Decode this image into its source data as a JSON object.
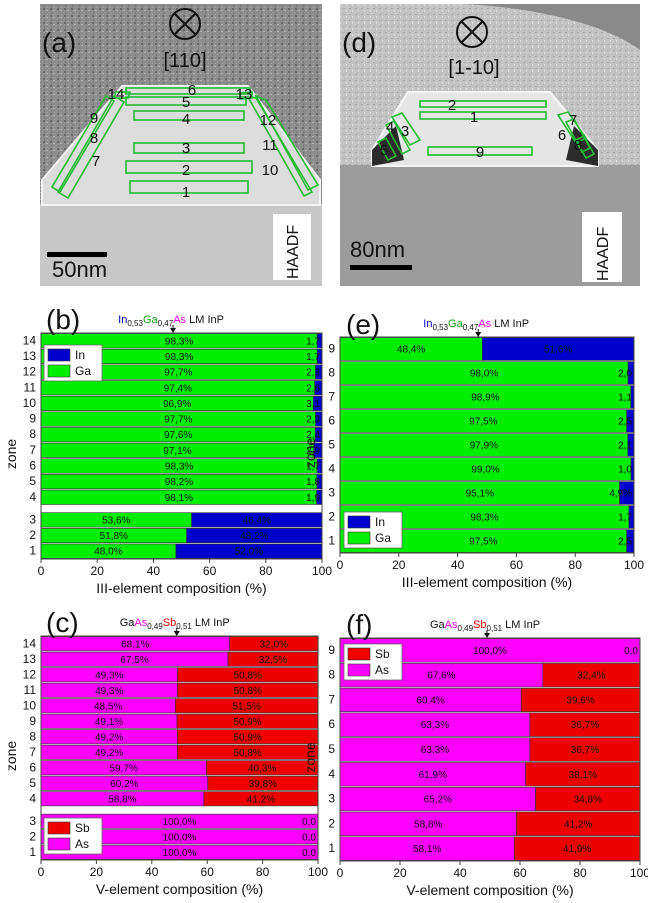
{
  "colors": {
    "in": "#0000cc",
    "ga": "#00ee00",
    "sb": "#ee0000",
    "as": "#ff00ff",
    "frame": "#444444",
    "zone_outline": "#22bb33"
  },
  "tem_images": [
    {
      "panel": "(a)",
      "direction": "[110]",
      "scalebar": "50nm",
      "detector": "HAADF",
      "zone_labels": [
        "1",
        "2",
        "3",
        "4",
        "5",
        "6",
        "7",
        "8",
        "9",
        "10",
        "11",
        "12",
        "13",
        "14"
      ]
    },
    {
      "panel": "(d)",
      "direction": "[1-10]",
      "scalebar": "80nm",
      "detector": "HAADF",
      "zone_labels": [
        "1",
        "2",
        "3",
        "4",
        "5",
        "6",
        "7",
        "8",
        "9"
      ]
    }
  ],
  "chart_data": [
    {
      "type": "bar",
      "orientation": "horizontal",
      "stacked": true,
      "panel": "(b)",
      "annotation": {
        "parts": [
          [
            "In",
            "in"
          ],
          [
            "0,53",
            "sub"
          ],
          [
            "Ga",
            "ga"
          ],
          [
            "0,47",
            "sub"
          ],
          [
            "As",
            "as"
          ],
          [
            " LM InP",
            "txt"
          ]
        ],
        "x": 47
      },
      "xlabel": "III-element composition (%)",
      "ylabel": "zone",
      "xlim": [
        0,
        100
      ],
      "xticks": [
        "0",
        "20",
        "40",
        "60",
        "80",
        "100"
      ],
      "categories": [
        "1",
        "2",
        "3",
        "4",
        "5",
        "6",
        "7",
        "8",
        "9",
        "10",
        "11",
        "12",
        "13",
        "14"
      ],
      "series": [
        {
          "name": "Ga",
          "color": "#00ee00",
          "values": [
            48.0,
            51.8,
            53.6,
            98.1,
            98.2,
            98.3,
            97.1,
            97.6,
            97.7,
            96.9,
            97.4,
            97.7,
            98.3,
            98.3
          ],
          "labels": [
            "48,0%",
            "51,8%",
            "53,6%",
            "98,1%",
            "98,2%",
            "98,3%",
            "97,1%",
            "97,6%",
            "97,7%",
            "96,9%",
            "97,4%",
            "97,7%",
            "98,3%",
            "98,3%"
          ]
        },
        {
          "name": "In",
          "color": "#0000cc",
          "values": [
            52.0,
            48.2,
            46.4,
            1.9,
            1.8,
            1.7,
            2.9,
            2.4,
            2.3,
            3.1,
            2.6,
            2.3,
            1.7,
            1.7
          ],
          "labels": [
            "52,0%",
            "48,2%",
            "46,4%",
            "1,9",
            "1,8",
            "1,7",
            "2,9",
            "2,4",
            "2,3",
            "3,1",
            "2,6",
            "2,3",
            "1,7",
            "1,7"
          ]
        }
      ],
      "legend": "top-left"
    },
    {
      "type": "bar",
      "orientation": "horizontal",
      "stacked": true,
      "panel": "(c)",
      "annotation": {
        "parts": [
          [
            "Ga",
            "txt"
          ],
          [
            "As",
            "as"
          ],
          [
            "0,49",
            "sub"
          ],
          [
            "Sb",
            "sb"
          ],
          [
            "0,51",
            "sub"
          ],
          [
            " LM InP",
            "txt"
          ]
        ],
        "x": 49
      },
      "xlabel": "V-element composition (%)",
      "ylabel": "zone",
      "xlim": [
        0,
        100
      ],
      "xticks": [
        "0",
        "20",
        "40",
        "60",
        "80",
        "100"
      ],
      "categories": [
        "1",
        "2",
        "3",
        "4",
        "5",
        "6",
        "7",
        "8",
        "9",
        "10",
        "11",
        "12",
        "13",
        "14"
      ],
      "series": [
        {
          "name": "As",
          "color": "#ff00ff",
          "values": [
            100.0,
            100.0,
            100.0,
            58.8,
            60.2,
            59.7,
            49.2,
            49.2,
            49.1,
            48.5,
            49.3,
            49.3,
            67.5,
            68.1
          ],
          "labels": [
            "100,0%",
            "100,0%",
            "100,0%",
            "58,8%",
            "60,2%",
            "59,7%",
            "49,2%",
            "49,2%",
            "49,1%",
            "48,5%",
            "49,3%",
            "49,3%",
            "67,5%",
            "68,1%"
          ]
        },
        {
          "name": "Sb",
          "color": "#ee0000",
          "values": [
            0.0,
            0.0,
            0.0,
            41.2,
            39.8,
            40.3,
            50.8,
            50.9,
            50.9,
            51.5,
            50.8,
            50.8,
            32.5,
            32.0
          ],
          "labels": [
            "0,0",
            "0,0",
            "0,0",
            "41,2%",
            "39,8%",
            "40,3%",
            "50,8%",
            "50,9%",
            "50,9%",
            "51,5%",
            "50,8%",
            "50,8%",
            "32,5%",
            "32,0%"
          ]
        }
      ],
      "legend": "bottom-left"
    },
    {
      "type": "bar",
      "orientation": "horizontal",
      "stacked": true,
      "panel": "(e)",
      "annotation": {
        "parts": [
          [
            "In",
            "in"
          ],
          [
            "0,53",
            "sub"
          ],
          [
            "Ga",
            "ga"
          ],
          [
            "0,47",
            "sub"
          ],
          [
            "As",
            "as"
          ],
          [
            " LM InP",
            "txt"
          ]
        ],
        "x": 47
      },
      "xlabel": "III-element composition (%)",
      "ylabel": "zone",
      "xlim": [
        0,
        100
      ],
      "xticks": [
        "0",
        "20",
        "40",
        "60",
        "80",
        "100"
      ],
      "categories": [
        "1",
        "2",
        "3",
        "4",
        "5",
        "6",
        "7",
        "8",
        "9"
      ],
      "series": [
        {
          "name": "Ga",
          "color": "#00ee00",
          "values": [
            97.5,
            98.3,
            95.1,
            99.0,
            97.9,
            97.5,
            98.9,
            98.0,
            48.4
          ],
          "labels": [
            "97,5%",
            "98,3%",
            "95,1%",
            "99,0%",
            "97,9%",
            "97,5%",
            "98,9%",
            "98,0%",
            "48,4%"
          ]
        },
        {
          "name": "In",
          "color": "#0000cc",
          "values": [
            2.5,
            1.7,
            4.9,
            1.0,
            2.1,
            2.5,
            1.1,
            2.0,
            51.6
          ],
          "labels": [
            "2,5",
            "1,7",
            "4,9%",
            "1,0",
            "2,1",
            "2,5",
            "1,1",
            "2,0",
            "51,6%"
          ]
        }
      ],
      "legend": "bottom-left"
    },
    {
      "type": "bar",
      "orientation": "horizontal",
      "stacked": true,
      "panel": "(f)",
      "annotation": {
        "parts": [
          [
            "Ga",
            "txt"
          ],
          [
            "As",
            "as"
          ],
          [
            "0,49",
            "sub"
          ],
          [
            "Sb",
            "sb"
          ],
          [
            "0,51",
            "sub"
          ],
          [
            " LM InP",
            "txt"
          ]
        ],
        "x": 49
      },
      "xlabel": "V-element composition (%)",
      "ylabel": "zone",
      "xlim": [
        0,
        100
      ],
      "xticks": [
        "0",
        "20",
        "40",
        "60",
        "80",
        "100"
      ],
      "categories": [
        "1",
        "2",
        "3",
        "4",
        "5",
        "6",
        "7",
        "8",
        "9"
      ],
      "series": [
        {
          "name": "As",
          "color": "#ff00ff",
          "values": [
            58.1,
            58.8,
            65.2,
            61.9,
            63.3,
            63.3,
            60.4,
            67.6,
            100.0
          ],
          "labels": [
            "58,1%",
            "58,8%",
            "65,2%",
            "61,9%",
            "63,3%",
            "63,3%",
            "60,4%",
            "67,6%",
            "100,0%"
          ]
        },
        {
          "name": "Sb",
          "color": "#ee0000",
          "values": [
            41.9,
            41.2,
            34.8,
            38.1,
            36.7,
            36.7,
            39.6,
            32.4,
            0.0
          ],
          "labels": [
            "41,9%",
            "41,2%",
            "34,8%",
            "38,1%",
            "36,7%",
            "36,7%",
            "39,6%",
            "32,4%",
            "0,0"
          ]
        }
      ],
      "legend": "top-left"
    }
  ]
}
